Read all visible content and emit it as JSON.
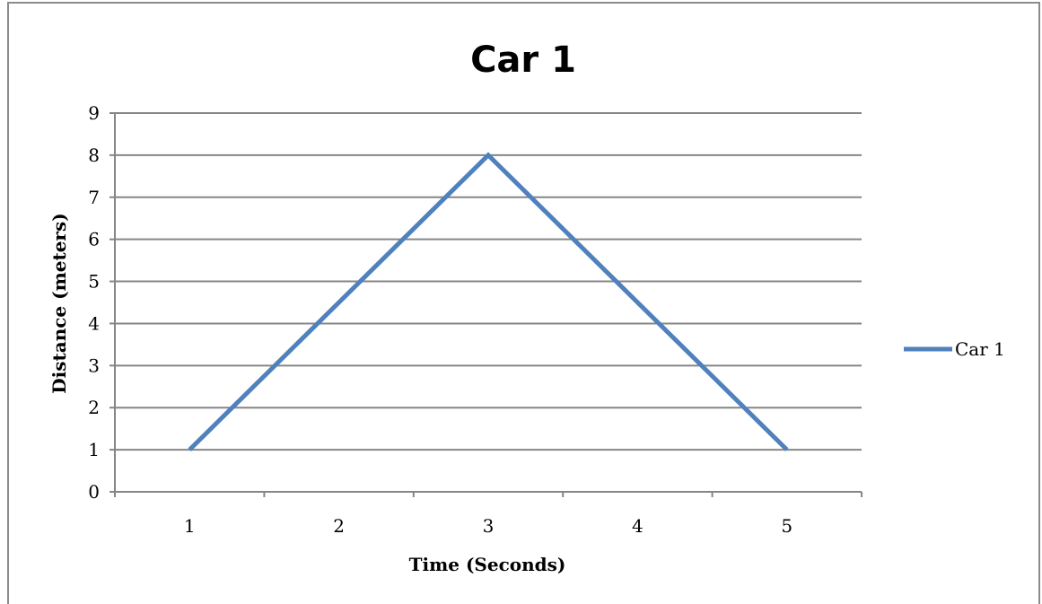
{
  "chart_data": {
    "type": "line",
    "title": "Car 1",
    "xlabel": "Time (Seconds)",
    "ylabel": "Distance (meters)",
    "categories": [
      "1",
      "2",
      "3",
      "4",
      "5"
    ],
    "series": [
      {
        "name": "Car 1",
        "color": "#4f81bd",
        "values": [
          1,
          null,
          8,
          null,
          1
        ]
      }
    ],
    "ylim": [
      0,
      9
    ],
    "yticks": [
      "0",
      "1",
      "2",
      "3",
      "4",
      "5",
      "6",
      "7",
      "8",
      "9"
    ],
    "grid": "horizontal",
    "legend": "right"
  },
  "colors": {
    "series": "#4f81bd",
    "grid": "#868686",
    "frame": "#8c8c8c"
  }
}
